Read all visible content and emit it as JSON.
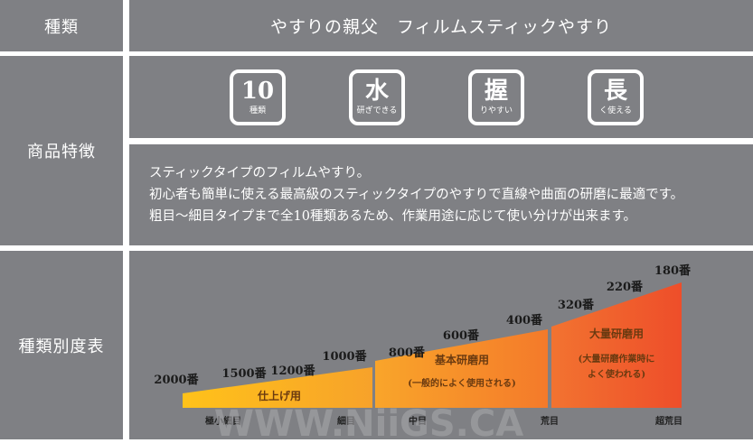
{
  "rows": {
    "type": {
      "label": "種類",
      "value": "やすりの親父　フィルムスティックやすり"
    },
    "features": {
      "label": "商品特徴",
      "badges": [
        {
          "main": "10",
          "sub": "種類",
          "icon": "ten-types-icon"
        },
        {
          "main": "水",
          "sub": "研ぎできる",
          "icon": "water-sharpening-icon"
        },
        {
          "main": "握",
          "sub": "りやすい",
          "icon": "easy-grip-icon"
        },
        {
          "main": "長",
          "sub": "く使える",
          "icon": "long-lasting-icon"
        }
      ],
      "description": [
        "スティックタイプのフィルムやすり。",
        "初心者も簡単に使える最高級のスティックタイプのやすりで直線や曲面の研磨に最適です。",
        "粗目～細目タイプまで全10種類あるため、作業用途に応じて使い分けが出来ます。"
      ]
    },
    "grit_chart": {
      "label": "種類別度表"
    }
  },
  "chart_data": {
    "type": "area",
    "title": "",
    "xlabel": "",
    "ylabel": "",
    "grits": [
      {
        "label": "2000番",
        "grit": 2000
      },
      {
        "label": "1500番",
        "grit": 1500
      },
      {
        "label": "1200番",
        "grit": 1200
      },
      {
        "label": "1000番",
        "grit": 1000
      },
      {
        "label": "800番",
        "grit": 800
      },
      {
        "label": "600番",
        "grit": 600
      },
      {
        "label": "400番",
        "grit": 400
      },
      {
        "label": "320番",
        "grit": 320
      },
      {
        "label": "220番",
        "grit": 220
      },
      {
        "label": "180番",
        "grit": 180
      }
    ],
    "segments": [
      {
        "name": "仕上げ用",
        "note": "",
        "from_grit": 2000,
        "to_grit": 1000,
        "color_start": "#ffc21a",
        "color_end": "#f7a22a"
      },
      {
        "name": "基本研磨用",
        "note": "(一般的によく使用される)",
        "from_grit": 800,
        "to_grit": 400,
        "color_start": "#f9a52a",
        "color_end": "#f47a2a"
      },
      {
        "name": "大量研磨用",
        "note_lines": [
          "(大量研磨作業時に",
          "よく使われる)"
        ],
        "from_grit": 320,
        "to_grit": 180,
        "color_start": "#f27330",
        "color_end": "#ee4e2a"
      }
    ],
    "coarseness_scale": [
      "極小細目",
      "細目",
      "中目",
      "荒目",
      "超荒目"
    ]
  },
  "watermark": "WWW.NiiGS.CA"
}
